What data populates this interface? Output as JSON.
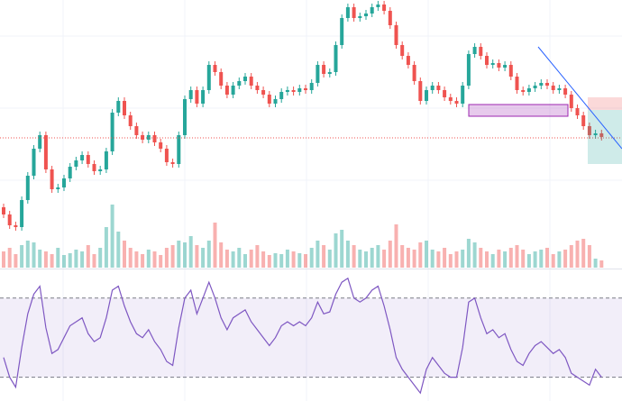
{
  "chart_data": {
    "type": "candlestick",
    "up_color": "#26a69a",
    "down_color": "#ef5350",
    "ylim": [
      0,
      265
    ],
    "open": [
      35,
      27,
      15,
      13,
      43,
      70,
      100,
      115,
      77,
      55,
      57,
      67,
      80,
      87,
      93,
      83,
      75,
      77,
      97,
      140,
      153,
      137,
      125,
      115,
      110,
      115,
      107,
      100,
      85,
      83,
      115,
      155,
      165,
      150,
      165,
      193,
      185,
      170,
      160,
      170,
      175,
      180,
      170,
      165,
      160,
      150,
      155,
      163,
      165,
      163,
      167,
      165,
      173,
      193,
      183,
      185,
      215,
      245,
      257,
      245,
      247,
      250,
      257,
      260,
      253,
      237,
      215,
      203,
      193,
      175,
      153,
      165,
      170,
      165,
      157,
      153,
      150,
      170,
      205,
      213,
      203,
      193,
      195,
      190,
      193,
      180,
      165,
      163,
      167,
      170,
      173,
      170,
      165,
      167,
      160,
      145,
      137,
      125,
      115,
      117
    ],
    "high": [
      39,
      31,
      19,
      47,
      74,
      104,
      119,
      119,
      81,
      61,
      71,
      84,
      91,
      97,
      97,
      87,
      81,
      101,
      144,
      157,
      157,
      141,
      129,
      119,
      119,
      119,
      111,
      104,
      89,
      119,
      159,
      169,
      169,
      169,
      197,
      197,
      189,
      174,
      174,
      179,
      184,
      184,
      174,
      169,
      164,
      159,
      167,
      169,
      169,
      171,
      171,
      177,
      197,
      197,
      189,
      219,
      249,
      261,
      261,
      251,
      254,
      261,
      264,
      264,
      257,
      241,
      219,
      207,
      197,
      179,
      169,
      174,
      174,
      169,
      161,
      157,
      174,
      209,
      217,
      217,
      207,
      199,
      199,
      197,
      197,
      184,
      169,
      171,
      174,
      177,
      177,
      174,
      171,
      171,
      164,
      149,
      141,
      129,
      121,
      121
    ],
    "low": [
      23,
      11,
      9,
      9,
      39,
      66,
      96,
      73,
      51,
      51,
      53,
      63,
      76,
      83,
      79,
      71,
      71,
      73,
      93,
      136,
      133,
      121,
      111,
      106,
      106,
      103,
      96,
      81,
      79,
      79,
      111,
      151,
      146,
      146,
      161,
      181,
      166,
      156,
      156,
      166,
      171,
      166,
      161,
      156,
      146,
      146,
      151,
      159,
      159,
      159,
      161,
      161,
      169,
      179,
      179,
      181,
      211,
      241,
      241,
      241,
      243,
      246,
      253,
      249,
      233,
      211,
      199,
      189,
      171,
      149,
      149,
      161,
      161,
      153,
      149,
      146,
      146,
      166,
      201,
      199,
      189,
      189,
      186,
      186,
      176,
      161,
      159,
      159,
      163,
      166,
      166,
      161,
      161,
      156,
      141,
      133,
      121,
      111,
      111,
      109
    ],
    "close": [
      27,
      15,
      13,
      43,
      70,
      100,
      115,
      77,
      55,
      57,
      67,
      80,
      87,
      93,
      83,
      75,
      77,
      97,
      140,
      153,
      137,
      125,
      115,
      110,
      115,
      107,
      100,
      85,
      83,
      115,
      155,
      165,
      150,
      165,
      193,
      185,
      170,
      160,
      170,
      175,
      180,
      170,
      165,
      160,
      150,
      155,
      163,
      165,
      163,
      167,
      165,
      173,
      193,
      183,
      185,
      215,
      245,
      257,
      245,
      247,
      250,
      257,
      260,
      253,
      237,
      215,
      203,
      193,
      175,
      153,
      165,
      170,
      165,
      157,
      153,
      150,
      170,
      205,
      213,
      203,
      193,
      195,
      190,
      193,
      180,
      165,
      163,
      167,
      170,
      173,
      170,
      165,
      167,
      160,
      145,
      137,
      125,
      115,
      117,
      113
    ],
    "volume": {
      "ylim": [
        0,
        75
      ],
      "values": [
        18,
        22,
        15,
        25,
        30,
        28,
        20,
        18,
        15,
        22,
        14,
        16,
        20,
        18,
        25,
        15,
        22,
        45,
        70,
        40,
        30,
        22,
        18,
        15,
        20,
        18,
        14,
        22,
        25,
        30,
        28,
        35,
        25,
        22,
        30,
        50,
        28,
        20,
        18,
        22,
        15,
        20,
        25,
        18,
        14,
        16,
        15,
        20,
        18,
        16,
        15,
        22,
        30,
        25,
        20,
        38,
        42,
        30,
        25,
        20,
        18,
        22,
        25,
        20,
        30,
        48,
        25,
        22,
        20,
        28,
        30,
        20,
        18,
        22,
        15,
        18,
        20,
        32,
        28,
        22,
        18,
        15,
        20,
        18,
        22,
        25,
        20,
        15,
        18,
        20,
        22,
        15,
        18,
        20,
        25,
        30,
        32,
        25,
        10,
        8
      ]
    },
    "rsi": {
      "ylim": [
        18,
        84
      ],
      "bands": [
        30,
        70
      ],
      "color": "#7e57c2",
      "values": [
        40,
        30,
        25,
        45,
        62,
        72,
        76,
        55,
        42,
        44,
        50,
        56,
        58,
        60,
        52,
        48,
        50,
        60,
        74,
        76,
        66,
        58,
        52,
        50,
        54,
        48,
        44,
        38,
        36,
        55,
        70,
        74,
        62,
        70,
        78,
        70,
        60,
        54,
        60,
        62,
        64,
        58,
        54,
        50,
        46,
        50,
        56,
        58,
        56,
        58,
        56,
        60,
        68,
        62,
        63,
        72,
        78,
        80,
        70,
        68,
        70,
        74,
        76,
        66,
        54,
        40,
        34,
        30,
        26,
        22,
        34,
        40,
        36,
        32,
        30,
        30,
        45,
        68,
        70,
        60,
        52,
        54,
        50,
        52,
        44,
        38,
        36,
        42,
        46,
        48,
        45,
        42,
        44,
        40,
        32,
        30,
        28,
        26,
        34,
        30
      ]
    }
  }
}
